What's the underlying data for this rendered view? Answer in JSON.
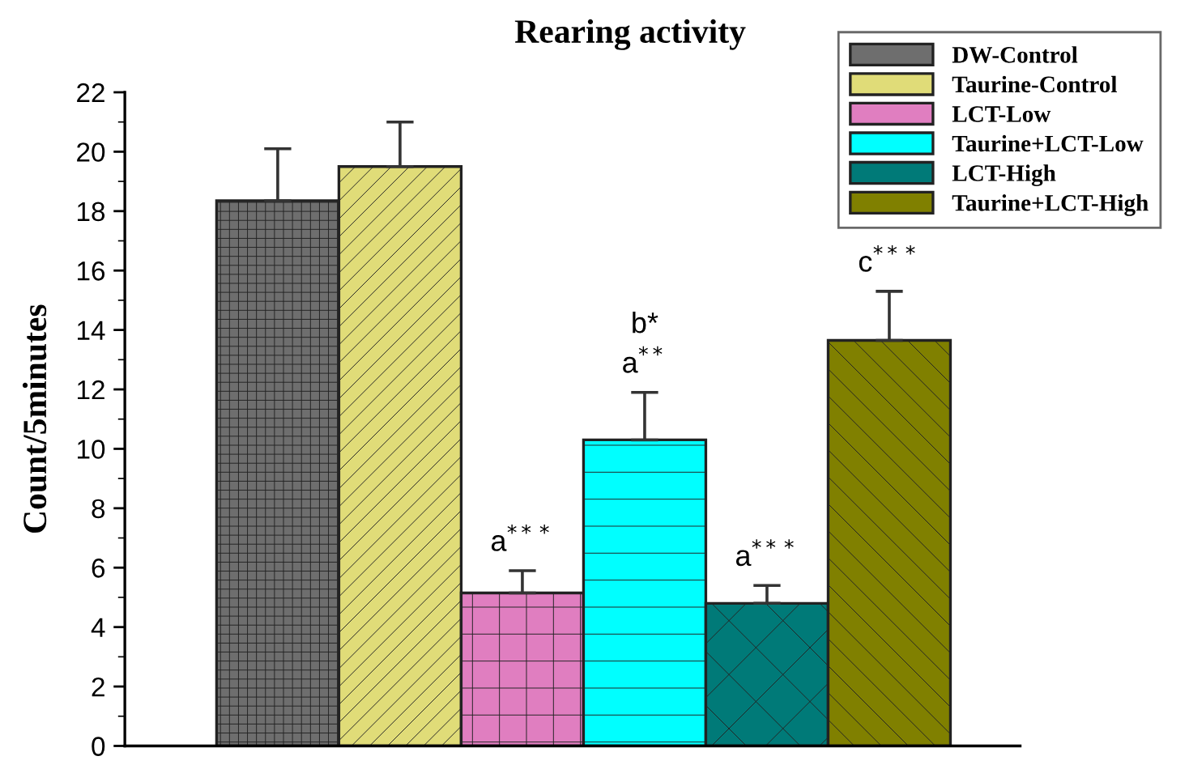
{
  "chart_data": {
    "type": "bar",
    "title": "Rearing activity",
    "ylabel": "Count/5minutes",
    "categories": [
      null
    ],
    "series": [
      {
        "name": "DW-Control",
        "color": "#6e6e6e",
        "values": [
          18.35
        ],
        "errors": [
          [
            18.35,
            20.1
          ]
        ]
      },
      {
        "name": "Taurine-Control",
        "color": "#e0dc78",
        "values": [
          19.5
        ],
        "errors": [
          [
            19.5,
            21.0
          ]
        ]
      },
      {
        "name": "LCT-Low",
        "color": "#e07ec0",
        "values": [
          5.15
        ],
        "errors": [
          [
            5.15,
            5.9
          ]
        ],
        "value_labels": [
          "a$^{***}$"
        ]
      },
      {
        "name": "Taurine+LCT-Low",
        "color": "#00ffff",
        "values": [
          10.3
        ],
        "errors": [
          [
            10.3,
            11.9
          ]
        ],
        "value_labels": [
          "b*\na$^{**}$"
        ]
      },
      {
        "name": "LCT-High",
        "color": "#007a78",
        "values": [
          4.8
        ],
        "errors": [
          [
            4.8,
            5.4
          ]
        ],
        "value_labels": [
          "a$^{***}$"
        ]
      },
      {
        "name": "Taurine+LCT-High",
        "color": "#808000",
        "values": [
          13.65
        ],
        "errors": [
          [
            13.65,
            15.3
          ]
        ],
        "value_labels": [
          "c$^{***}$"
        ]
      }
    ],
    "ylim": [
      0,
      22
    ],
    "yticks": [
      0,
      2,
      4,
      6,
      8,
      10,
      12,
      14,
      16,
      18,
      20,
      22
    ],
    "grid": false,
    "legend": "top right",
    "tick_labels": "y"
  }
}
